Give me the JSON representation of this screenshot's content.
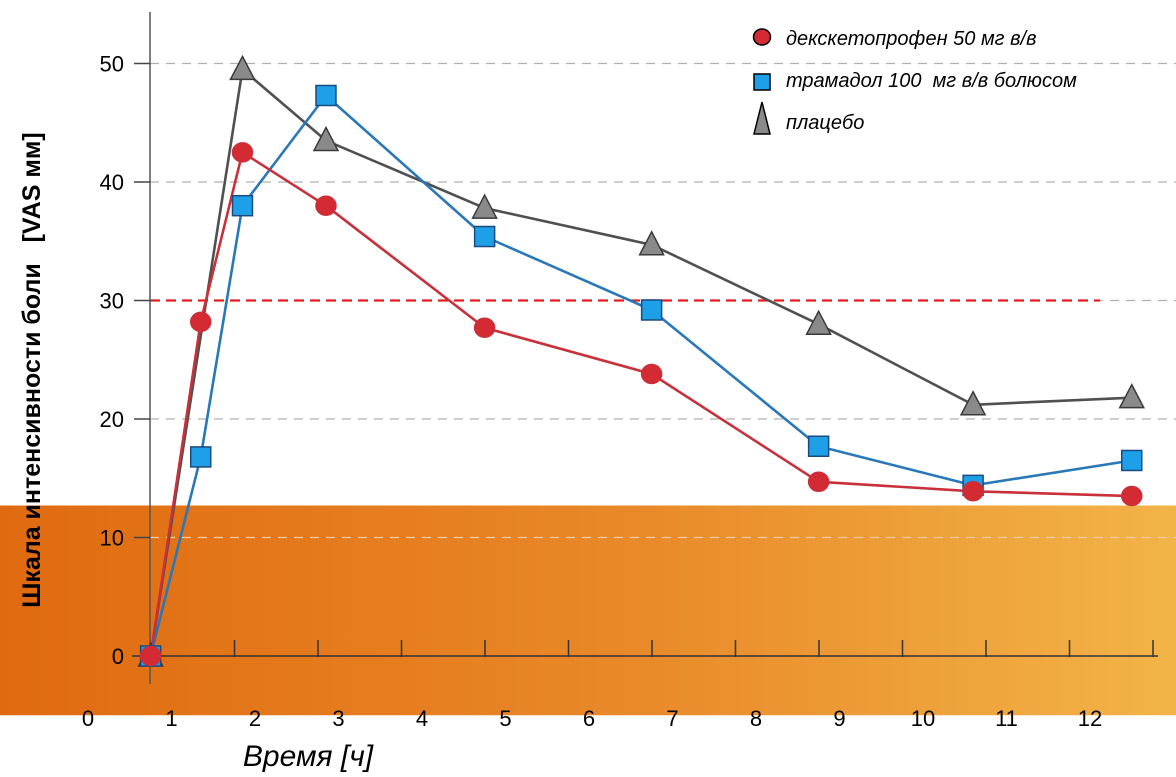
{
  "chart_data": {
    "type": "line",
    "xlabel": "Время [ч]",
    "ylabel": "Шкала интенсивности боли   [VAS мм]",
    "x_ticks": [
      "0",
      "1",
      "2",
      "3",
      "4",
      "5",
      "6",
      "7",
      "8",
      "9",
      "10",
      "11",
      "12"
    ],
    "y_ticks": [
      "0",
      "10",
      "20",
      "30",
      "40",
      "50"
    ],
    "ylim": [
      0,
      50
    ],
    "grid": "horizontal dashed",
    "legend_position": "top-right",
    "threshold_line": {
      "y": 30,
      "color": "#e02020",
      "style": "dashed"
    },
    "shaded_band": {
      "y_from": -5,
      "y_to": 12.7,
      "color": "#e87a1a"
    },
    "series": [
      {
        "name": "декскетопрофен 50 мг в/в",
        "marker": "circle",
        "color": "#c8303a",
        "fill": "#d42a34",
        "points": [
          [
            0.75,
            0
          ],
          [
            1.35,
            28.2
          ],
          [
            1.85,
            42.5
          ],
          [
            2.85,
            38.0
          ],
          [
            4.75,
            27.7
          ],
          [
            6.75,
            23.8
          ],
          [
            8.75,
            14.7
          ],
          [
            10.6,
            13.9
          ],
          [
            12.5,
            13.5
          ]
        ]
      },
      {
        "name": "трамадол 100  мг в/в болюсом",
        "marker": "square",
        "color": "#2a78b8",
        "fill": "#1ea0e8",
        "points": [
          [
            0.75,
            0
          ],
          [
            1.35,
            16.8
          ],
          [
            1.85,
            38.0
          ],
          [
            2.85,
            47.3
          ],
          [
            4.75,
            35.4
          ],
          [
            6.75,
            29.2
          ],
          [
            8.75,
            17.7
          ],
          [
            10.6,
            14.4
          ],
          [
            12.5,
            16.5
          ]
        ]
      },
      {
        "name": "плацебо",
        "marker": "triangle",
        "color": "#505050",
        "fill": "#8a8a8a",
        "points": [
          [
            0.75,
            0
          ],
          [
            1.85,
            49.5
          ],
          [
            2.85,
            43.5
          ],
          [
            4.75,
            37.8
          ],
          [
            6.75,
            34.7
          ],
          [
            8.75,
            28.0
          ],
          [
            10.6,
            21.2
          ],
          [
            12.5,
            21.8
          ]
        ]
      }
    ]
  }
}
